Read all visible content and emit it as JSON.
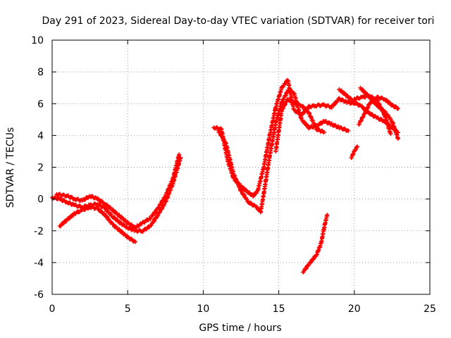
{
  "chart_data": {
    "type": "scatter",
    "title": "Day 291 of 2023, Sidereal Day-to-day VTEC variation (SDTVAR) for receiver tori",
    "xlabel": "GPS time / hours",
    "ylabel": "SDTVAR / TECUs",
    "xlim": [
      0,
      25
    ],
    "ylim": [
      -6,
      10
    ],
    "xticks": [
      "0",
      "5",
      "10",
      "15",
      "20",
      "25"
    ],
    "yticks": [
      "-6",
      "-4",
      "-2",
      "0",
      "2",
      "4",
      "6",
      "8",
      "10"
    ],
    "grid": true,
    "marker": "plus",
    "color": "#ff0000",
    "series": [
      {
        "values": [
          [
            0.0,
            0.1
          ],
          [
            0.5,
            0.0
          ],
          [
            1.0,
            -0.2
          ],
          [
            1.5,
            -0.4
          ],
          [
            2.0,
            -0.5
          ],
          [
            2.5,
            -0.4
          ],
          [
            3.0,
            -0.3
          ],
          [
            3.5,
            -0.6
          ],
          [
            4.0,
            -1.1
          ],
          [
            4.5,
            -1.5
          ],
          [
            5.0,
            -1.8
          ],
          [
            5.5,
            -2.0
          ],
          [
            6.0,
            -2.0
          ],
          [
            6.5,
            -1.7
          ],
          [
            7.0,
            -1.0
          ],
          [
            7.5,
            -0.2
          ],
          [
            8.0,
            1.0
          ],
          [
            8.5,
            2.6
          ]
        ]
      },
      {
        "values": [
          [
            0.5,
            -1.7
          ],
          [
            1.0,
            -1.3
          ],
          [
            1.5,
            -0.9
          ],
          [
            2.0,
            -0.7
          ],
          [
            2.5,
            -0.5
          ],
          [
            3.0,
            -0.6
          ],
          [
            3.5,
            -1.0
          ],
          [
            4.0,
            -1.6
          ],
          [
            4.5,
            -2.0
          ],
          [
            5.0,
            -2.4
          ],
          [
            5.5,
            -2.7
          ]
        ]
      },
      {
        "values": [
          [
            0.3,
            0.3
          ],
          [
            1.0,
            0.2
          ],
          [
            1.5,
            0.0
          ],
          [
            2.0,
            -0.1
          ],
          [
            2.5,
            0.2
          ],
          [
            3.0,
            0.0
          ],
          [
            3.5,
            -0.3
          ],
          [
            4.0,
            -0.7
          ],
          [
            4.5,
            -1.1
          ],
          [
            5.0,
            -1.5
          ],
          [
            5.5,
            -1.8
          ],
          [
            6.0,
            -1.5
          ],
          [
            6.5,
            -1.2
          ],
          [
            7.0,
            -0.6
          ],
          [
            7.5,
            0.2
          ],
          [
            8.0,
            1.3
          ],
          [
            8.4,
            2.8
          ]
        ]
      },
      {
        "values": [
          [
            10.7,
            4.5
          ],
          [
            11.2,
            4.4
          ],
          [
            11.6,
            2.5
          ],
          [
            12.0,
            1.3
          ],
          [
            12.5,
            0.8
          ],
          [
            13.0,
            0.4
          ],
          [
            13.3,
            0.2
          ],
          [
            13.6,
            0.5
          ],
          [
            14.0,
            2.0
          ],
          [
            14.4,
            4.0
          ],
          [
            14.8,
            5.8
          ],
          [
            15.2,
            7.0
          ],
          [
            15.6,
            7.5
          ],
          [
            16.0,
            5.6
          ],
          [
            16.5,
            5.3
          ],
          [
            17.0,
            5.8
          ],
          [
            17.5,
            5.9
          ],
          [
            18.0,
            5.9
          ],
          [
            18.5,
            5.8
          ],
          [
            19.0,
            6.3
          ],
          [
            19.5,
            6.1
          ],
          [
            20.0,
            6.0
          ]
        ]
      },
      {
        "values": [
          [
            11.0,
            4.3
          ],
          [
            11.5,
            3.5
          ],
          [
            12.0,
            1.6
          ],
          [
            12.5,
            0.5
          ],
          [
            13.0,
            -0.2
          ],
          [
            13.5,
            -0.5
          ],
          [
            13.8,
            -0.8
          ],
          [
            14.0,
            0.3
          ],
          [
            14.4,
            2.7
          ],
          [
            14.8,
            4.8
          ],
          [
            15.2,
            6.1
          ],
          [
            15.6,
            6.8
          ],
          [
            16.0,
            6.7
          ],
          [
            16.5,
            5.0
          ],
          [
            17.0,
            4.5
          ],
          [
            17.5,
            4.6
          ],
          [
            18.0,
            4.9
          ],
          [
            18.5,
            4.7
          ],
          [
            19.0,
            4.5
          ],
          [
            19.6,
            4.3
          ]
        ]
      },
      {
        "values": [
          [
            14.8,
            3.0
          ],
          [
            15.2,
            5.6
          ],
          [
            15.6,
            6.3
          ],
          [
            16.0,
            6.0
          ],
          [
            16.5,
            5.9
          ],
          [
            17.0,
            5.4
          ],
          [
            17.5,
            4.4
          ],
          [
            18.0,
            4.2
          ]
        ]
      },
      {
        "values": [
          [
            16.6,
            -4.6
          ],
          [
            17.0,
            -4.1
          ],
          [
            17.5,
            -3.5
          ],
          [
            17.8,
            -2.8
          ],
          [
            18.0,
            -1.8
          ],
          [
            18.2,
            -1.0
          ]
        ]
      },
      {
        "values": [
          [
            19.8,
            2.6
          ],
          [
            20.0,
            3.0
          ],
          [
            20.2,
            3.3
          ]
        ]
      },
      {
        "values": [
          [
            19.0,
            6.9
          ],
          [
            19.5,
            6.5
          ],
          [
            20.0,
            6.1
          ],
          [
            20.5,
            5.8
          ],
          [
            21.0,
            5.4
          ],
          [
            21.5,
            5.1
          ],
          [
            22.0,
            4.9
          ],
          [
            22.5,
            4.5
          ],
          [
            22.9,
            4.2
          ]
        ]
      },
      {
        "values": [
          [
            20.3,
            4.7
          ],
          [
            20.7,
            5.4
          ],
          [
            21.0,
            6.0
          ],
          [
            21.5,
            6.4
          ],
          [
            22.0,
            6.3
          ],
          [
            22.5,
            5.9
          ],
          [
            22.9,
            5.7
          ]
        ]
      },
      {
        "values": [
          [
            20.4,
            7.0
          ],
          [
            21.0,
            6.4
          ],
          [
            21.5,
            5.9
          ],
          [
            22.0,
            5.5
          ],
          [
            22.5,
            4.9
          ],
          [
            22.9,
            3.8
          ]
        ]
      },
      {
        "values": [
          [
            20.0,
            6.3
          ],
          [
            20.5,
            6.4
          ],
          [
            21.0,
            6.5
          ],
          [
            21.5,
            6.2
          ],
          [
            22.0,
            5.3
          ],
          [
            22.4,
            4.1
          ]
        ]
      }
    ]
  }
}
